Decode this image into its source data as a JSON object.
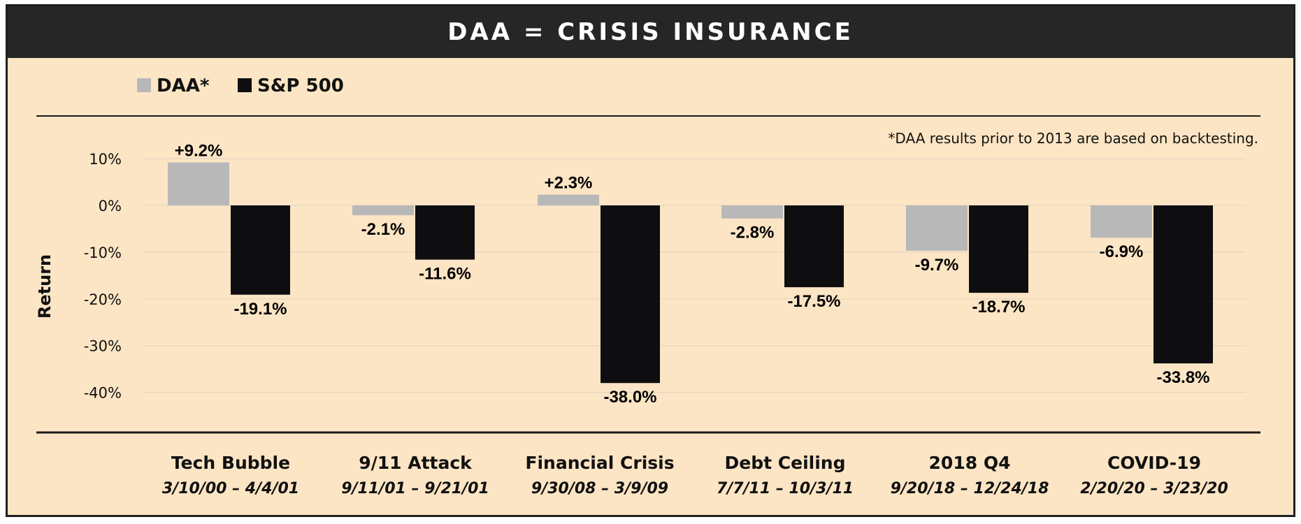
{
  "chart_data": {
    "type": "bar",
    "title": "DAA = CRISIS INSURANCE",
    "ylabel": "Return",
    "ylim": [
      -45,
      12
    ],
    "yticks": [
      10,
      0,
      -10,
      -20,
      -30,
      -40
    ],
    "ytick_labels": [
      "10%",
      "0%",
      "-10%",
      "-20%",
      "-30%",
      "-40%"
    ],
    "footnote": "*DAA results prior to 2013 are based on backtesting.",
    "legend_position": "top-left",
    "categories": [
      "Tech Bubble",
      "9/11 Attack",
      "Financial Crisis",
      "Debt Ceiling",
      "2018 Q4",
      "COVID-19"
    ],
    "date_ranges": [
      "3/10/00 – 4/4/01",
      "9/11/01 – 9/21/01",
      "9/30/08 – 3/9/09",
      "7/7/11 – 10/3/11",
      "9/20/18 – 12/24/18",
      "2/20/20 – 3/23/20"
    ],
    "series": [
      {
        "name": "DAA*",
        "color": "#b8b8b8",
        "values": [
          9.2,
          -2.1,
          2.3,
          -2.8,
          -9.7,
          -6.9
        ],
        "labels": [
          "+9.2%",
          "-2.1%",
          "+2.3%",
          "-2.8%",
          "-9.7%",
          "-6.9%"
        ]
      },
      {
        "name": "S&P 500",
        "color": "#0e0e10",
        "values": [
          -19.1,
          -11.6,
          -38.0,
          -17.5,
          -18.7,
          -33.8
        ],
        "labels": [
          "-19.1%",
          "-11.6%",
          "-38.0%",
          "-17.5%",
          "-18.7%",
          "-33.8%"
        ]
      }
    ]
  }
}
